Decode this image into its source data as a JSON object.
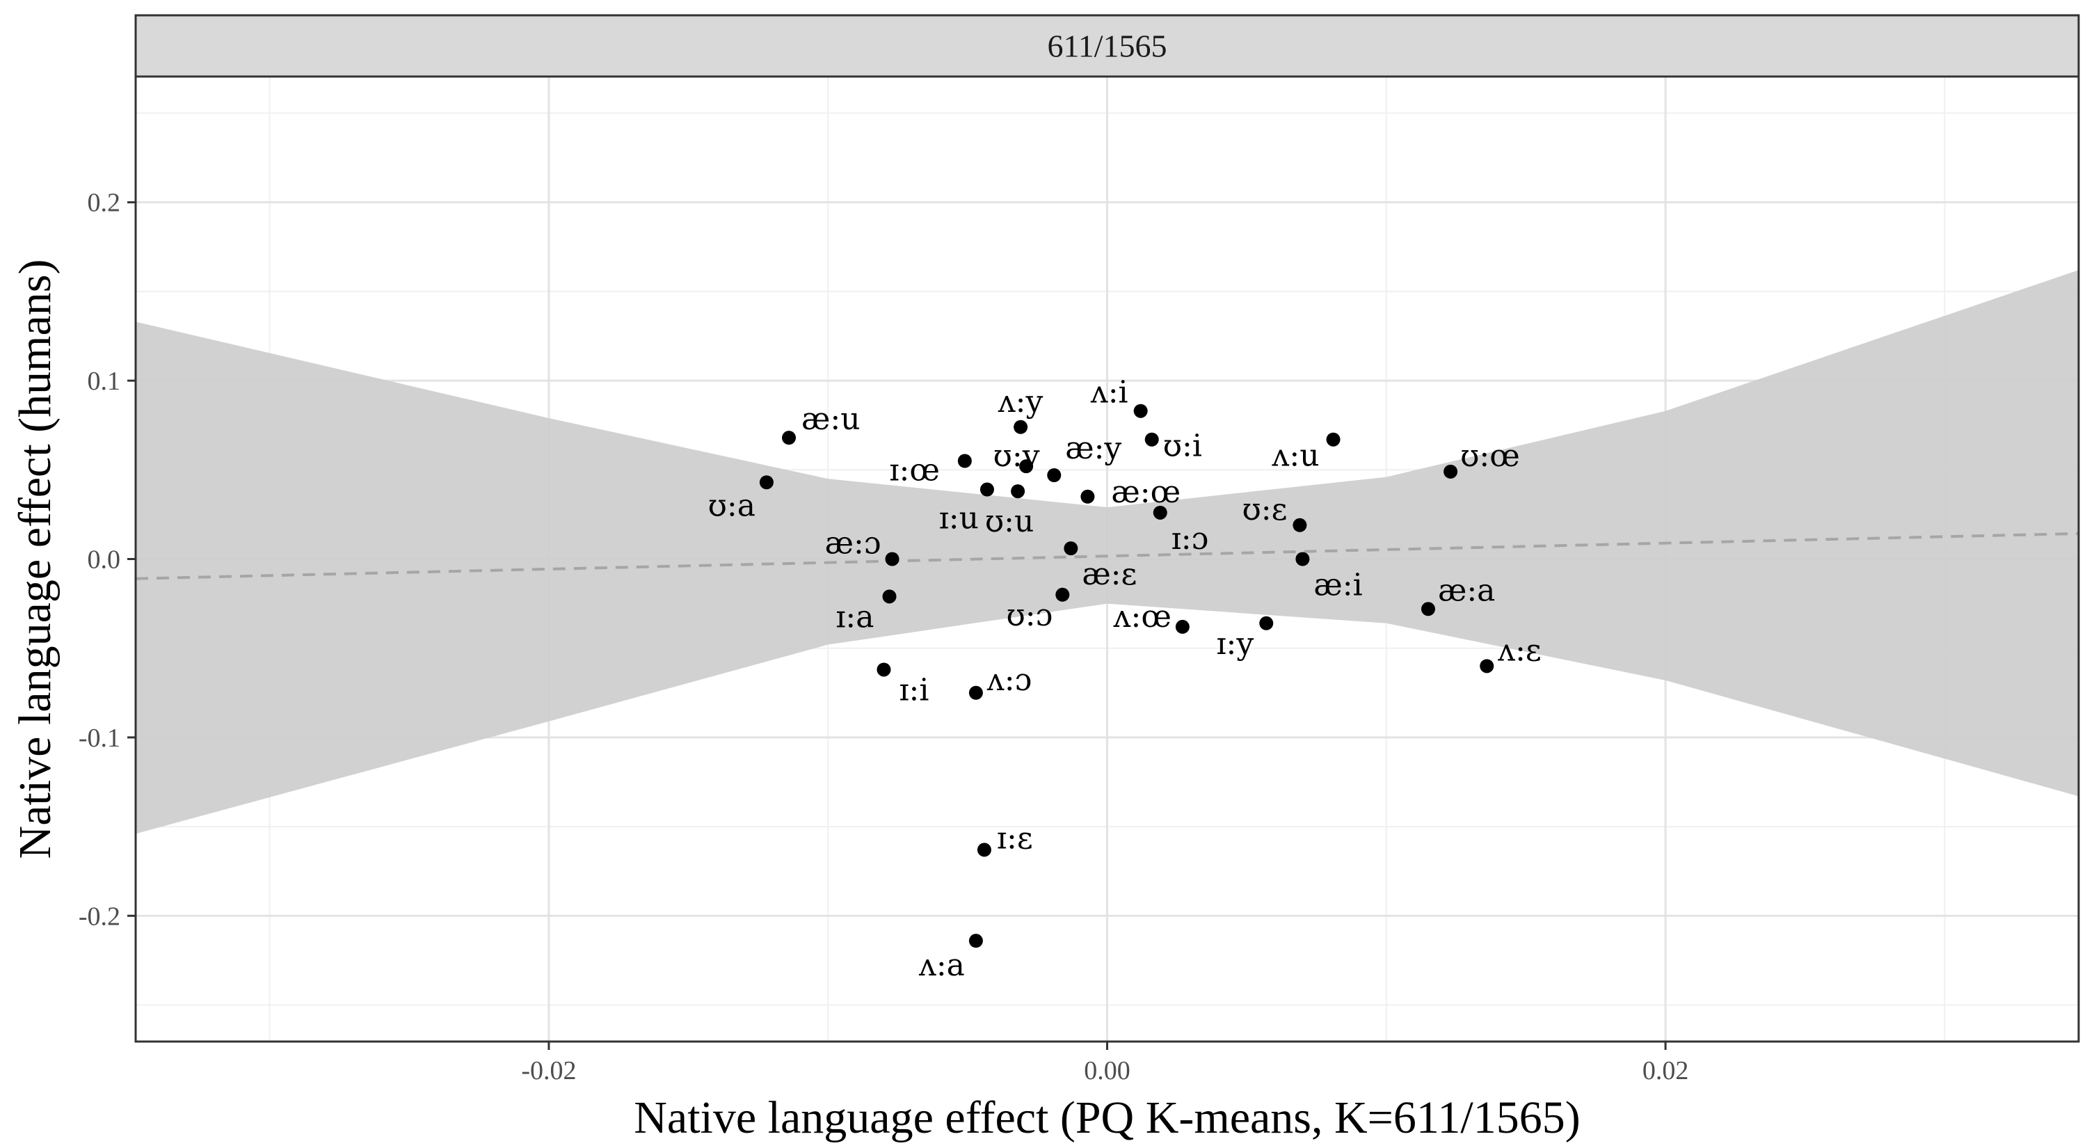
{
  "chart_data": {
    "type": "scatter",
    "facet_title": "611/1565",
    "xlabel": "Native language effect (PQ K-means, K=611/1565)",
    "ylabel": "Native language effect (humans)",
    "xlim": [
      -0.0348,
      0.0348
    ],
    "ylim": [
      -0.2705,
      0.2705
    ],
    "x_ticks": [
      -0.02,
      0.0,
      0.02
    ],
    "x_tick_labels": [
      "-0.02",
      "0.00",
      "0.02"
    ],
    "y_ticks": [
      -0.2,
      -0.1,
      0.0,
      0.1,
      0.2
    ],
    "y_tick_labels": [
      "-0.2",
      "-0.1",
      "0.0",
      "0.1",
      "0.2"
    ],
    "grid": true,
    "points": [
      {
        "label": "æ:u",
        "x": -0.0114,
        "y": 0.068
      },
      {
        "label": "ʊ:a",
        "x": -0.0122,
        "y": 0.043
      },
      {
        "label": "ʌ:y",
        "x": -0.0031,
        "y": 0.074
      },
      {
        "label": "ɪ:œ",
        "x": -0.0051,
        "y": 0.055
      },
      {
        "label": "ʊ:y",
        "x": -0.0029,
        "y": 0.052
      },
      {
        "label": "æ:y",
        "x": -0.0019,
        "y": 0.047
      },
      {
        "label": "ʌ:i",
        "x": 0.0012,
        "y": 0.083
      },
      {
        "label": "ʊ:i",
        "x": 0.0016,
        "y": 0.067
      },
      {
        "label": "ɪ:u",
        "x": -0.0043,
        "y": 0.039
      },
      {
        "label": "ʊ:u",
        "x": -0.0032,
        "y": 0.038
      },
      {
        "label": "æ:œ",
        "x": -0.0007,
        "y": 0.035
      },
      {
        "label": "ɪ:ɔ",
        "x": 0.0019,
        "y": 0.026
      },
      {
        "label": "ʌ:u",
        "x": 0.0081,
        "y": 0.067
      },
      {
        "label": "ʊ:œ",
        "x": 0.0123,
        "y": 0.049
      },
      {
        "label": "ʊ:ɛ",
        "x": 0.0069,
        "y": 0.019
      },
      {
        "label": "æ:ɔ",
        "x": -0.0077,
        "y": 0.0
      },
      {
        "label": "æ:ɛ",
        "x": -0.0013,
        "y": 0.006
      },
      {
        "label": "æ:i",
        "x": 0.007,
        "y": 0.0
      },
      {
        "label": "ɪ:a",
        "x": -0.0078,
        "y": -0.021
      },
      {
        "label": "ʊ:ɔ",
        "x": -0.0016,
        "y": -0.02
      },
      {
        "label": "ʌ:œ",
        "x": 0.0027,
        "y": -0.038
      },
      {
        "label": "ɪ:y",
        "x": 0.0057,
        "y": -0.036
      },
      {
        "label": "æ:a",
        "x": 0.0115,
        "y": -0.028
      },
      {
        "label": "ʌ:ɛ",
        "x": 0.0136,
        "y": -0.06
      },
      {
        "label": "ɪ:i",
        "x": -0.008,
        "y": -0.062
      },
      {
        "label": "ʌ:ɔ",
        "x": -0.0047,
        "y": -0.075
      },
      {
        "label": "ɪ:ɛ",
        "x": -0.0044,
        "y": -0.163
      },
      {
        "label": "ʌ:a",
        "x": -0.0047,
        "y": -0.214
      }
    ],
    "regression": {
      "style": "dashed",
      "color": "#a6a6a6",
      "fit": [
        {
          "x": -0.0348,
          "y": -0.011
        },
        {
          "x": 0.0348,
          "y": 0.0143
        }
      ]
    },
    "confidence_band": {
      "color": "#cccccc",
      "x": [
        -0.0348,
        -0.02,
        -0.01,
        0.0,
        0.01,
        0.02,
        0.0348
      ],
      "upper": [
        0.133,
        0.079,
        0.045,
        0.029,
        0.046,
        0.083,
        0.162
      ],
      "lower": [
        -0.154,
        -0.091,
        -0.048,
        -0.025,
        -0.036,
        -0.068,
        -0.133
      ]
    }
  }
}
